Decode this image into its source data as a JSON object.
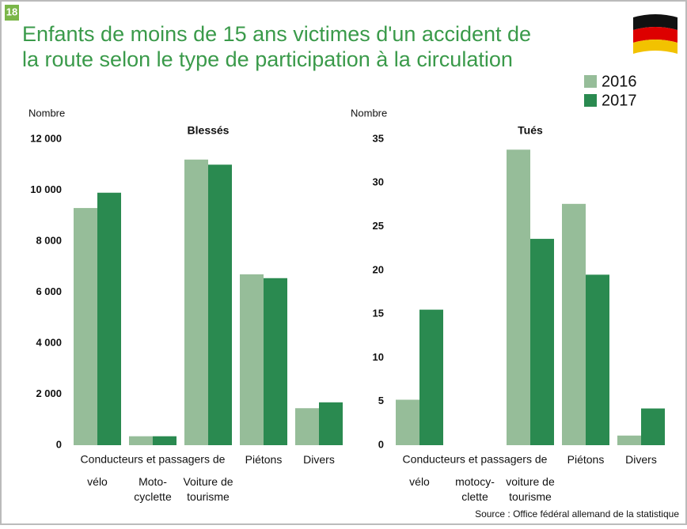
{
  "badge": "18",
  "title_lines": [
    "Enfants de moins de 15 ans victimes d'un accident de",
    "la route selon le type de participation à la circulation"
  ],
  "source": "Source : Office fédéral allemand de la statistique",
  "chart_data": [
    {
      "type": "bar",
      "title": "Blessés",
      "y_label": "Nombre",
      "group_label": "Conducteurs et passagers de",
      "categories": [
        "vélo",
        "Moto-\ncyclette",
        "Voiture de\ntourisme",
        "Piétons",
        "Divers"
      ],
      "series": [
        {
          "name": "2016",
          "color": "#96bd99",
          "values": [
            9300,
            350,
            11200,
            6700,
            1450
          ]
        },
        {
          "name": "2017",
          "color": "#2a8a50",
          "values": [
            9900,
            350,
            11000,
            6550,
            1680
          ]
        }
      ],
      "ylim": [
        0,
        12000
      ],
      "yticks": [
        0,
        {
          "value": 2000,
          "label": "2 000"
        },
        {
          "value": 4000,
          "label": "4 000"
        },
        {
          "value": 6000,
          "label": "6 000"
        },
        {
          "value": 8000,
          "label": "8 000"
        },
        {
          "value": 10000,
          "label": "10 000"
        },
        {
          "value": 12000,
          "label": "12 000"
        }
      ]
    },
    {
      "type": "bar",
      "title": "Tués",
      "y_label": "Nombre",
      "group_label": "Conducteurs et passagers de",
      "categories": [
        "vélo",
        "motocy-\nclette",
        "voiture de\ntourisme",
        "Piétons",
        "Divers"
      ],
      "series": [
        {
          "color": "#96bd99",
          "values": [
            5.2,
            0,
            33.8,
            27.6,
            1.1
          ]
        },
        {
          "color": "#2a8a50",
          "values": [
            15.5,
            0,
            23.6,
            19.5,
            4.2
          ]
        }
      ],
      "ylim": [
        0,
        35
      ],
      "yticks": [
        0,
        5,
        10,
        15,
        20,
        25,
        30,
        35
      ]
    }
  ]
}
